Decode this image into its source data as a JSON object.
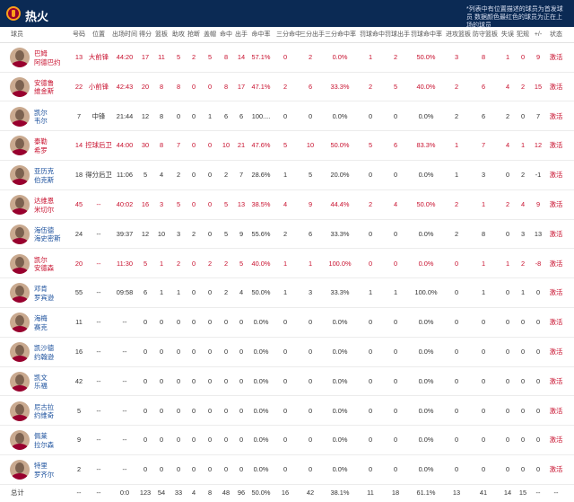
{
  "team": {
    "name": "热火",
    "note": "*列表中有位置描述的球员为首发球员 数据颜色最红色的球员为正在上场的球员"
  },
  "columns": [
    "球员",
    "号码",
    "位置",
    "出场时间",
    "得分",
    "篮板",
    "助攻",
    "抢断",
    "盖帽",
    "命中",
    "出手",
    "命中率",
    "三分命中",
    "三分出手",
    "三分命中率",
    "罚球命中",
    "罚球出手",
    "罚球命中率",
    "进攻篮板",
    "防守篮板",
    "失误",
    "犯规",
    "+/-",
    "状态"
  ],
  "players": [
    {
      "name": "巴姆 阿德巴约",
      "number": "13",
      "pos": "大前锋",
      "min": "44:20",
      "pts": "17",
      "reb": "11",
      "ast": "5",
      "stl": "2",
      "blk": "5",
      "fgm": "8",
      "fga": "14",
      "fgp": "57.1%",
      "tpm": "0",
      "tpa": "2",
      "tpp": "0.0%",
      "ftm": "1",
      "fta": "2",
      "ftp": "50.0%",
      "oreb": "3",
      "dreb": "8",
      "tov": "1",
      "pf": "0",
      "pm": "9",
      "status": "激活",
      "oncourt": true
    },
    {
      "name": "安德鲁 维金斯",
      "number": "22",
      "pos": "小前锋",
      "min": "42:43",
      "pts": "20",
      "reb": "8",
      "ast": "8",
      "stl": "0",
      "blk": "0",
      "fgm": "8",
      "fga": "17",
      "fgp": "47.1%",
      "tpm": "2",
      "tpa": "6",
      "tpp": "33.3%",
      "ftm": "2",
      "fta": "5",
      "ftp": "40.0%",
      "oreb": "2",
      "dreb": "6",
      "tov": "4",
      "pf": "2",
      "pm": "15",
      "status": "激活",
      "oncourt": true
    },
    {
      "name": "凯尔 韦尔",
      "number": "7",
      "pos": "中锋",
      "min": "21:44",
      "pts": "12",
      "reb": "8",
      "ast": "0",
      "stl": "0",
      "blk": "1",
      "fgm": "6",
      "fga": "6",
      "fgp": "100....",
      "tpm": "0",
      "tpa": "0",
      "tpp": "0.0%",
      "ftm": "0",
      "fta": "0",
      "ftp": "0.0%",
      "oreb": "2",
      "dreb": "6",
      "tov": "2",
      "pf": "0",
      "pm": "7",
      "status": "激活",
      "oncourt": false
    },
    {
      "name": "泰勒 希罗",
      "number": "14",
      "pos": "控球后卫",
      "min": "44:00",
      "pts": "30",
      "reb": "8",
      "ast": "7",
      "stl": "0",
      "blk": "0",
      "fgm": "10",
      "fga": "21",
      "fgp": "47.6%",
      "tpm": "5",
      "tpa": "10",
      "tpp": "50.0%",
      "ftm": "5",
      "fta": "6",
      "ftp": "83.3%",
      "oreb": "1",
      "dreb": "7",
      "tov": "4",
      "pf": "1",
      "pm": "12",
      "status": "激活",
      "oncourt": true
    },
    {
      "name": "亚历克 伯克斯",
      "number": "18",
      "pos": "得分后卫",
      "min": "11:06",
      "pts": "5",
      "reb": "4",
      "ast": "2",
      "stl": "0",
      "blk": "0",
      "fgm": "2",
      "fga": "7",
      "fgp": "28.6%",
      "tpm": "1",
      "tpa": "5",
      "tpp": "20.0%",
      "ftm": "0",
      "fta": "0",
      "ftp": "0.0%",
      "oreb": "1",
      "dreb": "3",
      "tov": "0",
      "pf": "2",
      "pm": "-1",
      "status": "激活",
      "oncourt": false
    },
    {
      "name": "达维恩 米切尔",
      "number": "45",
      "pos": "--",
      "min": "40:02",
      "pts": "16",
      "reb": "3",
      "ast": "5",
      "stl": "0",
      "blk": "0",
      "fgm": "5",
      "fga": "13",
      "fgp": "38.5%",
      "tpm": "4",
      "tpa": "9",
      "tpp": "44.4%",
      "ftm": "2",
      "fta": "4",
      "ftp": "50.0%",
      "oreb": "2",
      "dreb": "1",
      "tov": "2",
      "pf": "4",
      "pm": "9",
      "status": "激活",
      "oncourt": true
    },
    {
      "name": "海伍德 海史密斯",
      "number": "24",
      "pos": "--",
      "min": "39:37",
      "pts": "12",
      "reb": "10",
      "ast": "3",
      "stl": "2",
      "blk": "0",
      "fgm": "5",
      "fga": "9",
      "fgp": "55.6%",
      "tpm": "2",
      "tpa": "6",
      "tpp": "33.3%",
      "ftm": "0",
      "fta": "0",
      "ftp": "0.0%",
      "oreb": "2",
      "dreb": "8",
      "tov": "0",
      "pf": "3",
      "pm": "13",
      "status": "激活",
      "oncourt": false
    },
    {
      "name": "凯尔 安德森",
      "number": "20",
      "pos": "--",
      "min": "11:30",
      "pts": "5",
      "reb": "1",
      "ast": "2",
      "stl": "0",
      "blk": "2",
      "fgm": "2",
      "fga": "5",
      "fgp": "40.0%",
      "tpm": "1",
      "tpa": "1",
      "tpp": "100.0%",
      "ftm": "0",
      "fta": "0",
      "ftp": "0.0%",
      "oreb": "0",
      "dreb": "1",
      "tov": "1",
      "pf": "2",
      "pm": "-8",
      "status": "激活",
      "oncourt": true
    },
    {
      "name": "邓肯 罗宾逊",
      "number": "55",
      "pos": "--",
      "min": "09:58",
      "pts": "6",
      "reb": "1",
      "ast": "1",
      "stl": "0",
      "blk": "0",
      "fgm": "2",
      "fga": "4",
      "fgp": "50.0%",
      "tpm": "1",
      "tpa": "3",
      "tpp": "33.3%",
      "ftm": "1",
      "fta": "1",
      "ftp": "100.0%",
      "oreb": "0",
      "dreb": "1",
      "tov": "0",
      "pf": "1",
      "pm": "0",
      "status": "激活",
      "oncourt": false
    },
    {
      "name": "海梅 赛克",
      "number": "11",
      "pos": "--",
      "min": "--",
      "pts": "0",
      "reb": "0",
      "ast": "0",
      "stl": "0",
      "blk": "0",
      "fgm": "0",
      "fga": "0",
      "fgp": "0.0%",
      "tpm": "0",
      "tpa": "0",
      "tpp": "0.0%",
      "ftm": "0",
      "fta": "0",
      "ftp": "0.0%",
      "oreb": "0",
      "dreb": "0",
      "tov": "0",
      "pf": "0",
      "pm": "0",
      "status": "激活",
      "oncourt": false
    },
    {
      "name": "凯沙德 约翰逊",
      "number": "16",
      "pos": "--",
      "min": "--",
      "pts": "0",
      "reb": "0",
      "ast": "0",
      "stl": "0",
      "blk": "0",
      "fgm": "0",
      "fga": "0",
      "fgp": "0.0%",
      "tpm": "0",
      "tpa": "0",
      "tpp": "0.0%",
      "ftm": "0",
      "fta": "0",
      "ftp": "0.0%",
      "oreb": "0",
      "dreb": "0",
      "tov": "0",
      "pf": "0",
      "pm": "0",
      "status": "激活",
      "oncourt": false
    },
    {
      "name": "凯文 乐福",
      "number": "42",
      "pos": "--",
      "min": "--",
      "pts": "0",
      "reb": "0",
      "ast": "0",
      "stl": "0",
      "blk": "0",
      "fgm": "0",
      "fga": "0",
      "fgp": "0.0%",
      "tpm": "0",
      "tpa": "0",
      "tpp": "0.0%",
      "ftm": "0",
      "fta": "0",
      "ftp": "0.0%",
      "oreb": "0",
      "dreb": "0",
      "tov": "0",
      "pf": "0",
      "pm": "0",
      "status": "激活",
      "oncourt": false
    },
    {
      "name": "尼古拉 约维奇",
      "number": "5",
      "pos": "--",
      "min": "--",
      "pts": "0",
      "reb": "0",
      "ast": "0",
      "stl": "0",
      "blk": "0",
      "fgm": "0",
      "fga": "0",
      "fgp": "0.0%",
      "tpm": "0",
      "tpa": "0",
      "tpp": "0.0%",
      "ftm": "0",
      "fta": "0",
      "ftp": "0.0%",
      "oreb": "0",
      "dreb": "0",
      "tov": "0",
      "pf": "0",
      "pm": "0",
      "status": "激活",
      "oncourt": false
    },
    {
      "name": "佩莱 拉尔森",
      "number": "9",
      "pos": "--",
      "min": "--",
      "pts": "0",
      "reb": "0",
      "ast": "0",
      "stl": "0",
      "blk": "0",
      "fgm": "0",
      "fga": "0",
      "fgp": "0.0%",
      "tpm": "0",
      "tpa": "0",
      "tpp": "0.0%",
      "ftm": "0",
      "fta": "0",
      "ftp": "0.0%",
      "oreb": "0",
      "dreb": "0",
      "tov": "0",
      "pf": "0",
      "pm": "0",
      "status": "激活",
      "oncourt": false
    },
    {
      "name": "特里 罗齐尔",
      "number": "2",
      "pos": "--",
      "min": "--",
      "pts": "0",
      "reb": "0",
      "ast": "0",
      "stl": "0",
      "blk": "0",
      "fgm": "0",
      "fga": "0",
      "fgp": "0.0%",
      "tpm": "0",
      "tpa": "0",
      "tpp": "0.0%",
      "ftm": "0",
      "fta": "0",
      "ftp": "0.0%",
      "oreb": "0",
      "dreb": "0",
      "tov": "0",
      "pf": "0",
      "pm": "0",
      "status": "激活",
      "oncourt": false
    }
  ],
  "totals": {
    "label": "总计",
    "number": "--",
    "pos": "--",
    "min": "0:0",
    "pts": "123",
    "reb": "54",
    "ast": "33",
    "stl": "4",
    "blk": "8",
    "fgm": "48",
    "fga": "96",
    "fgp": "50.0%",
    "tpm": "16",
    "tpa": "42",
    "tpp": "38.1%",
    "ftm": "11",
    "fta": "18",
    "ftp": "61.1%",
    "oreb": "13",
    "dreb": "41",
    "tov": "14",
    "pf": "15",
    "pm": "--",
    "status": "--"
  },
  "colors": {
    "header_bg": "#0b2a54",
    "oncourt": "#c8102e",
    "bench": "#1a4f9c",
    "status": "#c8102e"
  }
}
